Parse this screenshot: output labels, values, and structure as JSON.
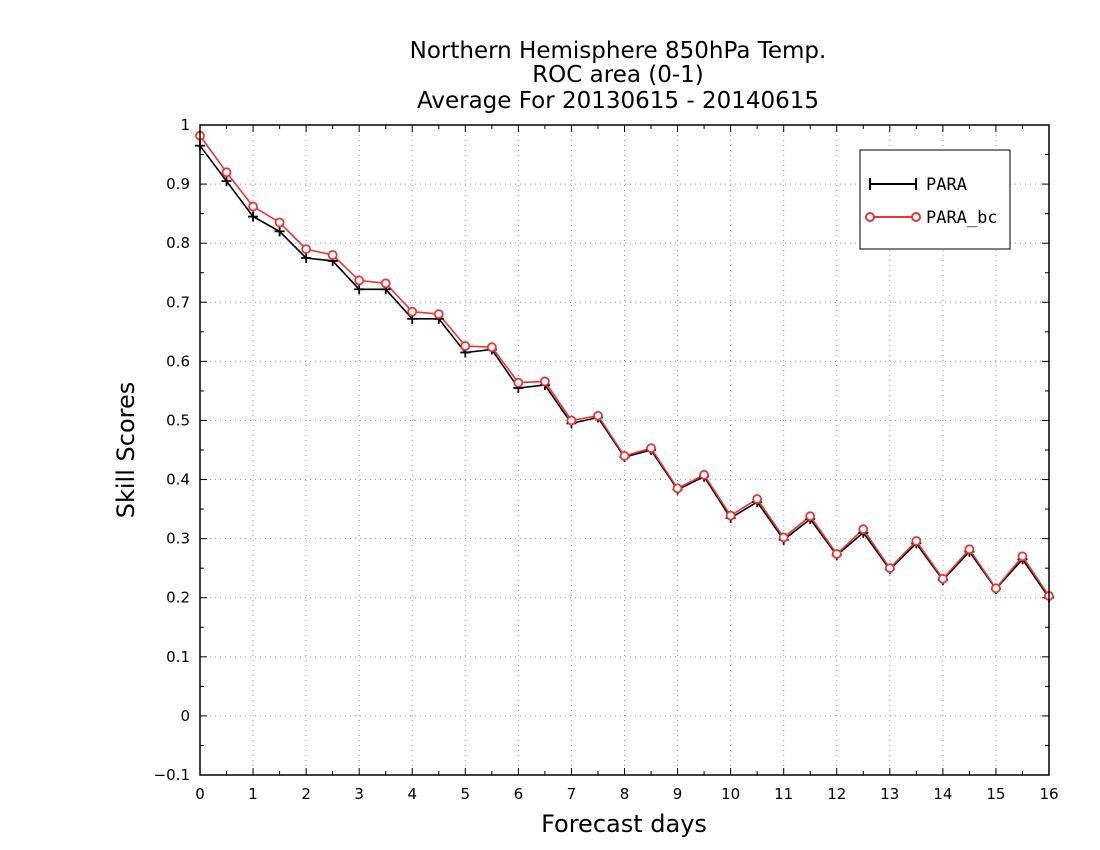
{
  "chart_data": {
    "type": "line",
    "title": [
      "Northern Hemisphere 850hPa Temp.",
      "ROC area (0-1)",
      "Average For 20130615 - 20140615"
    ],
    "xlabel": "Forecast days",
    "ylabel": "Skill Scores",
    "xlim": [
      0,
      16
    ],
    "ylim": [
      -0.1,
      1
    ],
    "xticks": [
      0,
      1,
      2,
      3,
      4,
      5,
      6,
      7,
      8,
      9,
      10,
      11,
      12,
      13,
      14,
      15,
      16
    ],
    "yticks": [
      -0.1,
      0,
      0.1,
      0.2,
      0.3,
      0.4,
      0.5,
      0.6,
      0.7,
      0.8,
      0.9,
      1
    ],
    "ytick_labels": [
      "−0.1",
      "0",
      "0.1",
      "0.2",
      "0.3",
      "0.4",
      "0.5",
      "0.6",
      "0.7",
      "0.8",
      "0.9",
      "1"
    ],
    "grid": true,
    "legend_position": "top-right",
    "x": [
      0,
      0.5,
      1,
      1.5,
      2,
      2.5,
      3,
      3.5,
      4,
      4.5,
      5,
      5.5,
      6,
      6.5,
      7,
      7.5,
      8,
      8.5,
      9,
      9.5,
      10,
      10.5,
      11,
      11.5,
      12,
      12.5,
      13,
      13.5,
      14,
      14.5,
      15,
      15.5,
      16
    ],
    "series": [
      {
        "name": "PARA",
        "color": "#000000",
        "marker": "plus",
        "values": [
          0.965,
          0.905,
          0.845,
          0.82,
          0.775,
          0.77,
          0.722,
          0.722,
          0.672,
          0.672,
          0.615,
          0.62,
          0.555,
          0.56,
          0.495,
          0.505,
          0.438,
          0.45,
          0.383,
          0.405,
          0.335,
          0.362,
          0.298,
          0.333,
          0.272,
          0.31,
          0.248,
          0.292,
          0.23,
          0.278,
          0.215,
          0.265,
          0.2
        ]
      },
      {
        "name": "PARA_bc",
        "color": "#ee3333",
        "marker": "circle",
        "values": [
          0.982,
          0.92,
          0.862,
          0.835,
          0.79,
          0.78,
          0.737,
          0.732,
          0.684,
          0.68,
          0.626,
          0.624,
          0.564,
          0.566,
          0.5,
          0.508,
          0.44,
          0.453,
          0.385,
          0.408,
          0.339,
          0.367,
          0.302,
          0.338,
          0.274,
          0.316,
          0.25,
          0.296,
          0.232,
          0.282,
          0.216,
          0.27,
          0.203
        ]
      }
    ]
  }
}
